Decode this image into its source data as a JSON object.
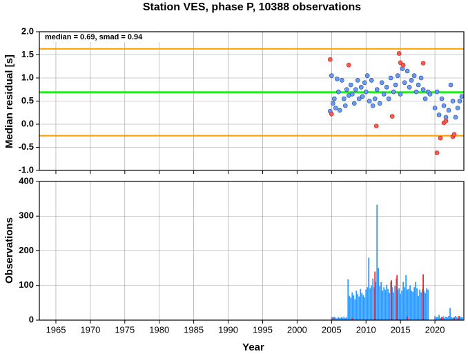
{
  "chart_data": [
    {
      "type": "scatter",
      "title": "Station VES, phase P, 10388 observations",
      "y_label": "Median residual [s]",
      "annotation": "median = 0.69, smad = 0.94",
      "xlim": [
        1962.6,
        2024.2
      ],
      "xticks": [
        1965,
        1970,
        1975,
        1980,
        1985,
        1990,
        1995,
        2000,
        2005,
        2010,
        2015,
        2020
      ],
      "ylim": [
        -1,
        2
      ],
      "yticks": [
        {
          "value": -1,
          "label": "-1.0"
        },
        {
          "value": -0.5,
          "label": "-0.5"
        },
        {
          "value": 0,
          "label": "0.0"
        },
        {
          "value": 0.5,
          "label": "0.5"
        },
        {
          "value": 1,
          "label": "1.0"
        },
        {
          "value": 1.5,
          "label": "1.5"
        },
        {
          "value": 2,
          "label": "2.0"
        }
      ],
      "grid": true,
      "reference_lines": [
        {
          "value": 1.63,
          "color": "#ffa500"
        },
        {
          "value": 0.69,
          "color": "#22ee22"
        },
        {
          "value": -0.25,
          "color": "#ffa500"
        }
      ],
      "series": [
        {
          "color": "#6a9cf0",
          "x": [
            2004.8,
            2005.0,
            2005.2,
            2005.4,
            2005.6,
            2005.8,
            2006.0,
            2006.2,
            2006.5,
            2006.8,
            2007.0,
            2007.2,
            2007.5,
            2007.8,
            2008.0,
            2008.3,
            2008.5,
            2008.8,
            2009.0,
            2009.3,
            2009.5,
            2009.8,
            2010.0,
            2010.2,
            2010.5,
            2010.8,
            2011.0,
            2011.3,
            2011.6,
            2012.0,
            2012.3,
            2012.6,
            2013.0,
            2013.3,
            2013.6,
            2014.0,
            2014.3,
            2014.6,
            2015.0,
            2015.3,
            2015.6,
            2016.0,
            2016.3,
            2016.6,
            2017.0,
            2017.3,
            2017.6,
            2018.0,
            2018.3,
            2018.6,
            2019.0,
            2019.3,
            2020.0,
            2020.3,
            2020.6,
            2021.0,
            2021.3,
            2021.6,
            2022.0,
            2022.3,
            2022.6,
            2023.0,
            2023.3,
            2023.6,
            2023.9
          ],
          "values": [
            0.28,
            1.05,
            0.45,
            0.55,
            0.35,
            0.98,
            0.7,
            0.3,
            0.95,
            0.55,
            0.4,
            0.75,
            0.62,
            0.85,
            0.65,
            0.45,
            0.75,
            0.95,
            0.55,
            0.8,
            0.6,
            0.9,
            0.7,
            1.05,
            0.5,
            0.95,
            0.4,
            0.55,
            0.75,
            0.45,
            0.9,
            0.65,
            0.8,
            0.55,
            1.0,
            0.7,
            0.85,
            1.05,
            0.65,
            1.2,
            0.9,
            1.15,
            0.8,
            0.95,
            1.05,
            0.7,
            0.85,
            1.0,
            0.75,
            0.55,
            0.7,
            0.65,
            0.35,
            0.7,
            0.2,
            0.55,
            0.4,
            0.15,
            0.3,
            0.85,
            0.5,
            0.15,
            0.35,
            0.5,
            0.6
          ]
        },
        {
          "color": "#ff5a4a",
          "x": [
            2004.8,
            2005.0,
            2007.5,
            2011.5,
            2013.8,
            2014.8,
            2015.0,
            2015.4,
            2018.3,
            2020.3,
            2020.8,
            2021.3,
            2021.6,
            2022.6,
            2022.8
          ],
          "values": [
            1.4,
            0.22,
            1.28,
            -0.04,
            0.17,
            1.53,
            1.33,
            1.28,
            1.32,
            -0.62,
            -0.3,
            0.03,
            0.07,
            -0.27,
            -0.22
          ]
        }
      ]
    },
    {
      "type": "bar",
      "x_label": "Year",
      "y_label": "Observations",
      "xlim": [
        1962.6,
        2024.2
      ],
      "xticks": [
        1965,
        1970,
        1975,
        1980,
        1985,
        1990,
        1995,
        2000,
        2005,
        2010,
        2015,
        2020
      ],
      "ylim": [
        0,
        400
      ],
      "yticks": [
        0,
        100,
        200,
        300,
        400
      ],
      "grid": true,
      "series": [
        {
          "color": "#3399ff",
          "x": [
            2005.0,
            2005.2,
            2005.4,
            2005.6,
            2005.8,
            2006.0,
            2006.2,
            2006.4,
            2006.6,
            2006.8,
            2007.0,
            2007.2,
            2007.4,
            2007.6,
            2007.8,
            2008.0,
            2008.2,
            2008.4,
            2008.6,
            2008.8,
            2009.0,
            2009.2,
            2009.4,
            2009.6,
            2009.8,
            2010.0,
            2010.2,
            2010.4,
            2010.6,
            2010.8,
            2011.0,
            2011.2,
            2011.4,
            2011.6,
            2011.8,
            2012.0,
            2012.2,
            2012.4,
            2012.6,
            2012.8,
            2013.0,
            2013.2,
            2013.4,
            2013.6,
            2013.8,
            2014.0,
            2014.2,
            2014.4,
            2014.6,
            2014.8,
            2015.0,
            2015.2,
            2015.4,
            2015.6,
            2015.8,
            2016.0,
            2016.2,
            2016.4,
            2016.6,
            2016.8,
            2017.0,
            2017.2,
            2017.4,
            2017.6,
            2017.8,
            2018.0,
            2018.2,
            2018.4,
            2018.6,
            2018.8,
            2019.0,
            2020.0,
            2020.2,
            2020.4,
            2020.6,
            2020.8,
            2021.0,
            2021.2,
            2021.4,
            2021.6,
            2021.8,
            2022.0,
            2022.2,
            2022.4,
            2022.6,
            2022.8,
            2023.0,
            2023.2,
            2023.4,
            2023.6,
            2023.8,
            2024.0
          ],
          "values": [
            8,
            6,
            10,
            7,
            5,
            9,
            6,
            8,
            7,
            10,
            6,
            8,
            118,
            70,
            65,
            80,
            72,
            60,
            85,
            75,
            68,
            90,
            78,
            72,
            66,
            88,
            95,
            180,
            92,
            100,
            120,
            95,
            110,
            333,
            150,
            98,
            110,
            85,
            95,
            88,
            102,
            90,
            78,
            110,
            95,
            80,
            98,
            120,
            88,
            92,
            76,
            85,
            110,
            95,
            130,
            88,
            90,
            100,
            85,
            82,
            95,
            110,
            92,
            70,
            88,
            80,
            90,
            85,
            78,
            92,
            88,
            12,
            8,
            10,
            15,
            6,
            9,
            11,
            7,
            10,
            8,
            12,
            35,
            9,
            7,
            10,
            12,
            8,
            6,
            10,
            9,
            8
          ]
        },
        {
          "color": "#ff2020",
          "x": [
            2005.2,
            2008.0,
            2011.3,
            2013.7,
            2014.5,
            2016.0,
            2018.3,
            2021.0,
            2022.8,
            2023.5
          ],
          "values": [
            8,
            6,
            140,
            115,
            130,
            10,
            132,
            8,
            6,
            12
          ]
        }
      ]
    }
  ]
}
